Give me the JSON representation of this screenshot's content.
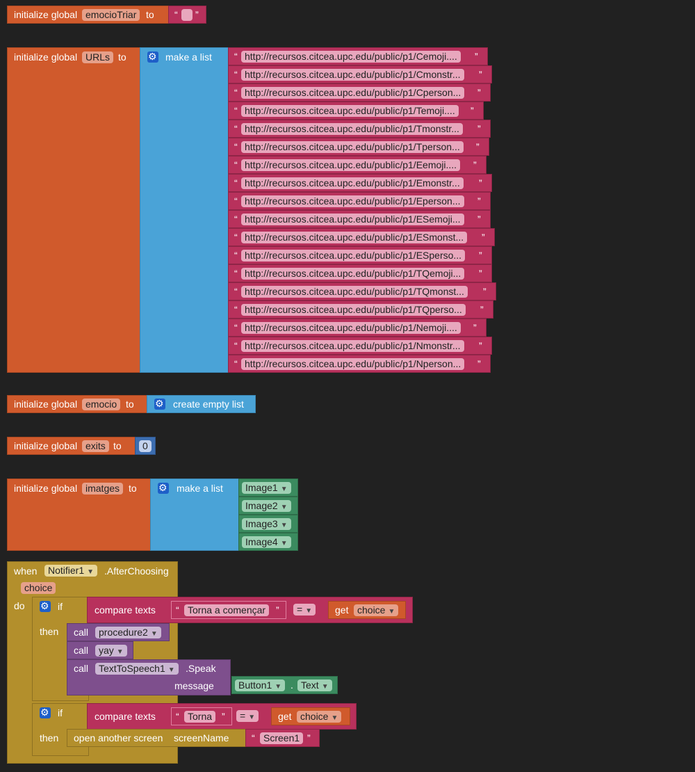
{
  "workspace": {
    "init_label": "initialize global",
    "to_label": "to",
    "open_quote": "“",
    "close_quote": "”",
    "make_list": "make a list",
    "create_empty_list": "create empty list",
    "vars": {
      "emocioTriar": "emocioTriar",
      "urls": "URLs",
      "emocio": "emocio",
      "exits": "exits",
      "imatges": "imatges"
    },
    "exits_value": "0",
    "urls": [
      "http://recursos.citcea.upc.edu/public/p1/Cemoji....",
      "http://recursos.citcea.upc.edu/public/p1/Cmonstr...",
      "http://recursos.citcea.upc.edu/public/p1/Cperson...",
      "http://recursos.citcea.upc.edu/public/p1/Temoji....",
      "http://recursos.citcea.upc.edu/public/p1/Tmonstr...",
      "http://recursos.citcea.upc.edu/public/p1/Tperson...",
      "http://recursos.citcea.upc.edu/public/p1/Eemoji....",
      "http://recursos.citcea.upc.edu/public/p1/Emonstr...",
      "http://recursos.citcea.upc.edu/public/p1/Eperson...",
      "http://recursos.citcea.upc.edu/public/p1/ESemoji...",
      "http://recursos.citcea.upc.edu/public/p1/ESmonst...",
      "http://recursos.citcea.upc.edu/public/p1/ESperso...",
      "http://recursos.citcea.upc.edu/public/p1/TQemoji...",
      "http://recursos.citcea.upc.edu/public/p1/TQmonst...",
      "http://recursos.citcea.upc.edu/public/p1/TQperso...",
      "http://recursos.citcea.upc.edu/public/p1/Nemoji....",
      "http://recursos.citcea.upc.edu/public/p1/Nmonstr...",
      "http://recursos.citcea.upc.edu/public/p1/Nperson..."
    ],
    "images": [
      "Image1",
      "Image2",
      "Image3",
      "Image4"
    ],
    "event": {
      "when": "when",
      "component": "Notifier1",
      "event_name": ".AfterChoosing",
      "param": "choice",
      "do": "do",
      "if": "if",
      "then": "then",
      "compare_texts": "compare texts",
      "eq": "=",
      "get": "get",
      "choice": "choice",
      "str1": "Torna a començar",
      "str2": "Torna",
      "call": "call",
      "procedure2": "procedure2",
      "yay": "yay",
      "tts": "TextToSpeech1",
      "speak": ".Speak",
      "message": "message",
      "button": "Button1",
      "dot": ".",
      "text_prop": "Text",
      "open_screen": "open another screen",
      "screen_name": "screenName",
      "screen1": "Screen1"
    }
  }
}
